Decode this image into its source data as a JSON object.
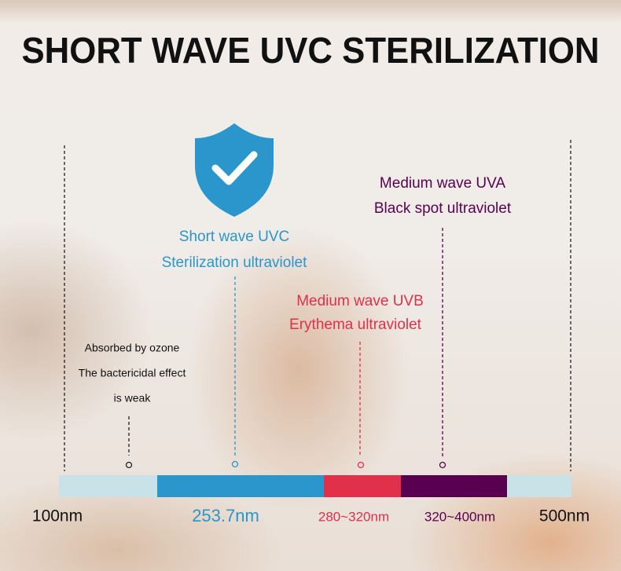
{
  "title": "SHORT WAVE UVC STERILIZATION",
  "annotations": {
    "ozone": [
      "Absorbed by ozone",
      "The bactericidal effect",
      "is weak"
    ],
    "uvc": [
      "Short wave UVC",
      "Sterilization ultraviolet"
    ],
    "uvb": [
      "Medium wave UVB",
      "Erythema ultraviolet"
    ],
    "uva": [
      "Medium wave UVA",
      "Black spot ultraviolet"
    ]
  },
  "scale": [
    "100nm",
    "253.7nm",
    "280~320nm",
    "320~400nm",
    "500nm"
  ]
}
